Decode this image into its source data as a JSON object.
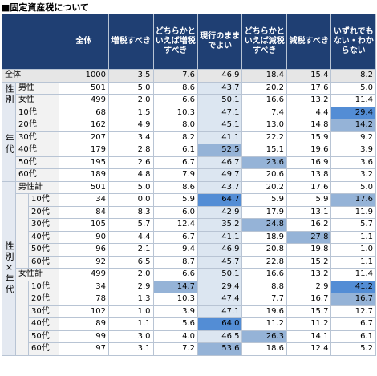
{
  "title": "■固定資産税について",
  "columns": [
    "全体",
    "増税すべき",
    "どちらかといえば増税すべき",
    "現行のままでよい",
    "どちらかといえば減税すべき",
    "減税すべき",
    "いずれでもない・わからない"
  ],
  "total": {
    "label": "全体",
    "n": 1000,
    "values": [
      3.5,
      7.6,
      46.9,
      18.4,
      15.4,
      8.2
    ]
  },
  "groups": [
    {
      "name": "性別",
      "rows": [
        {
          "label": "男性",
          "n": 501,
          "values": [
            5.0,
            8.6,
            43.7,
            20.2,
            17.6,
            5.0
          ]
        },
        {
          "label": "女性",
          "n": 499,
          "values": [
            2.0,
            6.6,
            50.1,
            16.6,
            13.2,
            11.4
          ]
        }
      ]
    },
    {
      "name": "年代",
      "rows": [
        {
          "label": "10代",
          "n": 68,
          "values": [
            1.5,
            10.3,
            47.1,
            7.4,
            4.4,
            29.4
          ]
        },
        {
          "label": "20代",
          "n": 162,
          "values": [
            4.9,
            8.0,
            45.1,
            13.0,
            14.8,
            14.2
          ]
        },
        {
          "label": "30代",
          "n": 207,
          "values": [
            3.4,
            8.2,
            41.1,
            22.2,
            15.9,
            9.2
          ]
        },
        {
          "label": "40代",
          "n": 179,
          "values": [
            2.8,
            6.1,
            52.5,
            15.1,
            19.6,
            3.9
          ]
        },
        {
          "label": "50代",
          "n": 195,
          "values": [
            2.6,
            6.7,
            46.7,
            23.6,
            16.9,
            3.6
          ]
        },
        {
          "label": "60代",
          "n": 189,
          "values": [
            4.8,
            7.9,
            49.7,
            20.6,
            13.8,
            3.2
          ]
        }
      ]
    },
    {
      "name": "性別×年代",
      "subgroups": [
        {
          "total": {
            "label": "男性計",
            "n": 501,
            "values": [
              5.0,
              8.6,
              43.7,
              20.2,
              17.6,
              5.0
            ]
          },
          "rows": [
            {
              "label": "10代",
              "n": 34,
              "values": [
                0.0,
                5.9,
                64.7,
                5.9,
                5.9,
                17.6
              ]
            },
            {
              "label": "20代",
              "n": 84,
              "values": [
                8.3,
                6.0,
                42.9,
                17.9,
                13.1,
                11.9
              ]
            },
            {
              "label": "30代",
              "n": 105,
              "values": [
                5.7,
                12.4,
                35.2,
                24.8,
                16.2,
                5.7
              ]
            },
            {
              "label": "40代",
              "n": 90,
              "values": [
                4.4,
                6.7,
                41.1,
                18.9,
                27.8,
                1.1
              ]
            },
            {
              "label": "50代",
              "n": 96,
              "values": [
                2.1,
                9.4,
                46.9,
                20.8,
                19.8,
                1.0
              ]
            },
            {
              "label": "60代",
              "n": 92,
              "values": [
                6.5,
                8.7,
                45.7,
                22.8,
                15.2,
                1.1
              ]
            }
          ]
        },
        {
          "total": {
            "label": "女性計",
            "n": 499,
            "values": [
              2.0,
              6.6,
              50.1,
              16.6,
              13.2,
              11.4
            ]
          },
          "rows": [
            {
              "label": "10代",
              "n": 34,
              "values": [
                2.9,
                14.7,
                29.4,
                8.8,
                2.9,
                41.2
              ]
            },
            {
              "label": "20代",
              "n": 78,
              "values": [
                1.3,
                10.3,
                47.4,
                7.7,
                16.7,
                16.7
              ]
            },
            {
              "label": "30代",
              "n": 102,
              "values": [
                1.0,
                3.9,
                47.1,
                19.6,
                15.7,
                12.7
              ]
            },
            {
              "label": "40代",
              "n": 89,
              "values": [
                1.1,
                5.6,
                64.0,
                11.2,
                11.2,
                6.7
              ]
            },
            {
              "label": "50代",
              "n": 99,
              "values": [
                3.0,
                4.0,
                46.5,
                26.3,
                14.1,
                6.1
              ]
            },
            {
              "label": "60代",
              "n": 97,
              "values": [
                3.1,
                7.2,
                53.6,
                18.6,
                12.4,
                5.2
              ]
            }
          ]
        }
      ]
    }
  ]
}
